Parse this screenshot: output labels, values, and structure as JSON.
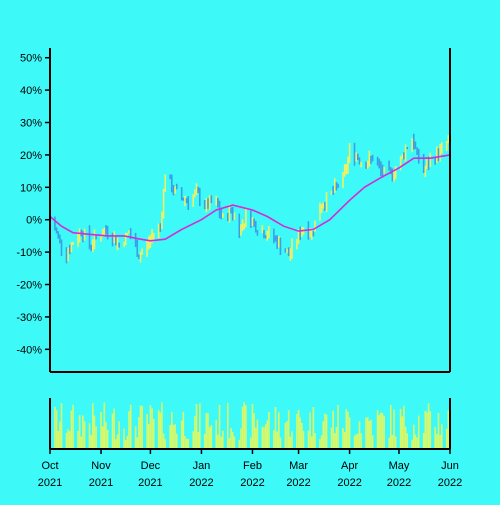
{
  "colors": {
    "background": "#3dfaf9",
    "up": "#f3f05f",
    "down": "#3a9fe6",
    "moving_average": "#d62ad6",
    "volume": "#d8f86a",
    "axis": "#000000"
  },
  "chart_data": {
    "type": "bar",
    "subtype": "ohlc-with-volume",
    "title": "",
    "xlabel": "",
    "ylabel": "",
    "ylim": [
      -47,
      53
    ],
    "y_ticks": [
      {
        "value": 50,
        "label": "50%"
      },
      {
        "value": 40,
        "label": "40%"
      },
      {
        "value": 30,
        "label": "30%"
      },
      {
        "value": 20,
        "label": "20%"
      },
      {
        "value": 10,
        "label": "10%"
      },
      {
        "value": 0,
        "label": "0%"
      },
      {
        "value": -10,
        "label": "-10%"
      },
      {
        "value": -20,
        "label": "-20%"
      },
      {
        "value": -30,
        "label": "-30%"
      },
      {
        "value": -40,
        "label": "-40%"
      }
    ],
    "x_range": [
      "2021-10-01",
      "2022-06-01"
    ],
    "x_ticks": [
      {
        "date": "2021-10-01",
        "line1": "Oct",
        "line2": "2021"
      },
      {
        "date": "2021-11-01",
        "line1": "Nov",
        "line2": "2021"
      },
      {
        "date": "2021-12-01",
        "line1": "Dec",
        "line2": "2021"
      },
      {
        "date": "2022-01-01",
        "line1": "Jan",
        "line2": "2022"
      },
      {
        "date": "2022-02-01",
        "line1": "Feb",
        "line2": "2022"
      },
      {
        "date": "2022-03-01",
        "line1": "Mar",
        "line2": "2022"
      },
      {
        "date": "2022-04-01",
        "line1": "Apr",
        "line2": "2022"
      },
      {
        "date": "2022-05-01",
        "line1": "May",
        "line2": "2022"
      },
      {
        "date": "2022-06-01",
        "line1": "Jun",
        "line2": "2022"
      }
    ],
    "price_close": [
      {
        "date": "2021-10-01",
        "value": 0
      },
      {
        "date": "2021-10-05",
        "value": -4
      },
      {
        "date": "2021-10-10",
        "value": -11
      },
      {
        "date": "2021-10-15",
        "value": -7
      },
      {
        "date": "2021-10-20",
        "value": -3
      },
      {
        "date": "2021-10-25",
        "value": -8
      },
      {
        "date": "2021-10-30",
        "value": -5
      },
      {
        "date": "2021-11-05",
        "value": -3
      },
      {
        "date": "2021-11-12",
        "value": -8
      },
      {
        "date": "2021-11-18",
        "value": -4
      },
      {
        "date": "2021-11-24",
        "value": -11
      },
      {
        "date": "2021-11-29",
        "value": -8
      },
      {
        "date": "2021-12-03",
        "value": -4
      },
      {
        "date": "2021-12-07",
        "value": -2
      },
      {
        "date": "2021-12-10",
        "value": 14
      },
      {
        "date": "2021-12-14",
        "value": 10
      },
      {
        "date": "2021-12-19",
        "value": 7
      },
      {
        "date": "2021-12-24",
        "value": 6
      },
      {
        "date": "2021-12-29",
        "value": 8
      },
      {
        "date": "2022-01-04",
        "value": 4
      },
      {
        "date": "2022-01-09",
        "value": 6
      },
      {
        "date": "2022-01-14",
        "value": 0
      },
      {
        "date": "2022-01-19",
        "value": 3
      },
      {
        "date": "2022-01-24",
        "value": -3
      },
      {
        "date": "2022-01-29",
        "value": 2
      },
      {
        "date": "2022-02-03",
        "value": -2
      },
      {
        "date": "2022-02-08",
        "value": -4
      },
      {
        "date": "2022-02-13",
        "value": -5
      },
      {
        "date": "2022-02-18",
        "value": -8
      },
      {
        "date": "2022-02-23",
        "value": -11
      },
      {
        "date": "2022-02-28",
        "value": -6
      },
      {
        "date": "2022-03-04",
        "value": -2
      },
      {
        "date": "2022-03-09",
        "value": -4
      },
      {
        "date": "2022-03-14",
        "value": 4
      },
      {
        "date": "2022-03-19",
        "value": 7
      },
      {
        "date": "2022-03-24",
        "value": 10
      },
      {
        "date": "2022-03-29",
        "value": 14
      },
      {
        "date": "2022-04-01",
        "value": 21
      },
      {
        "date": "2022-04-05",
        "value": 20
      },
      {
        "date": "2022-04-10",
        "value": 17
      },
      {
        "date": "2022-04-15",
        "value": 19
      },
      {
        "date": "2022-04-20",
        "value": 15
      },
      {
        "date": "2022-04-25",
        "value": 14
      },
      {
        "date": "2022-04-30",
        "value": 16
      },
      {
        "date": "2022-05-05",
        "value": 22
      },
      {
        "date": "2022-05-09",
        "value": 25
      },
      {
        "date": "2022-05-12",
        "value": 20
      },
      {
        "date": "2022-05-16",
        "value": 15
      },
      {
        "date": "2022-05-21",
        "value": 19
      },
      {
        "date": "2022-05-26",
        "value": 21
      },
      {
        "date": "2022-06-01",
        "value": 25
      }
    ],
    "moving_average": [
      {
        "date": "2021-10-01",
        "value": 1
      },
      {
        "date": "2021-10-08",
        "value": -2
      },
      {
        "date": "2021-10-15",
        "value": -4
      },
      {
        "date": "2021-10-25",
        "value": -4.5
      },
      {
        "date": "2021-11-05",
        "value": -5
      },
      {
        "date": "2021-11-15",
        "value": -5
      },
      {
        "date": "2021-11-25",
        "value": -6
      },
      {
        "date": "2021-12-01",
        "value": -6.5
      },
      {
        "date": "2021-12-10",
        "value": -6
      },
      {
        "date": "2021-12-20",
        "value": -3
      },
      {
        "date": "2022-01-01",
        "value": 0
      },
      {
        "date": "2022-01-10",
        "value": 3
      },
      {
        "date": "2022-01-20",
        "value": 4.5
      },
      {
        "date": "2022-02-01",
        "value": 3
      },
      {
        "date": "2022-02-10",
        "value": 1
      },
      {
        "date": "2022-02-20",
        "value": -2
      },
      {
        "date": "2022-03-01",
        "value": -3.5
      },
      {
        "date": "2022-03-10",
        "value": -3
      },
      {
        "date": "2022-03-20",
        "value": 0
      },
      {
        "date": "2022-04-01",
        "value": 6
      },
      {
        "date": "2022-04-10",
        "value": 10
      },
      {
        "date": "2022-04-20",
        "value": 13
      },
      {
        "date": "2022-05-01",
        "value": 16
      },
      {
        "date": "2022-05-10",
        "value": 19
      },
      {
        "date": "2022-05-20",
        "value": 19
      },
      {
        "date": "2022-06-01",
        "value": 20
      }
    ]
  }
}
